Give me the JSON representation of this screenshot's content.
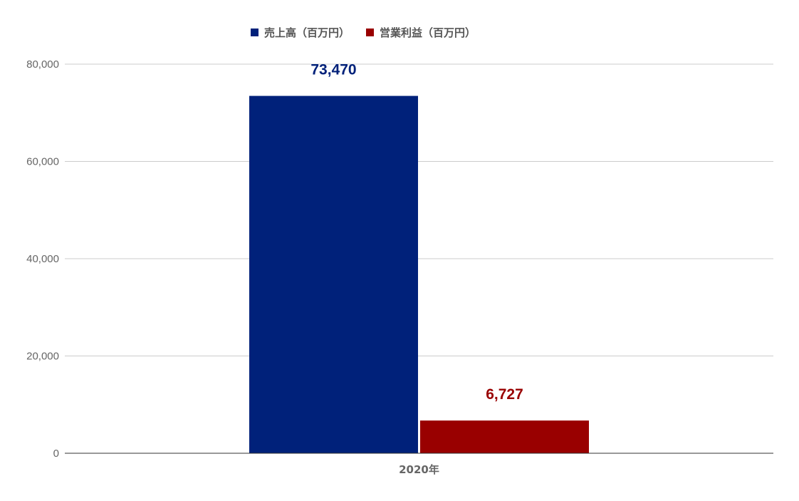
{
  "chart_data": {
    "type": "bar",
    "categories": [
      "2020年"
    ],
    "series": [
      {
        "name": "売上高（百万円）",
        "values": [
          73470
        ],
        "label": "73,470",
        "color": "#00217a"
      },
      {
        "name": "営業利益（百万円）",
        "values": [
          6727
        ],
        "label": "6,727",
        "color": "#990000"
      }
    ],
    "ylim": [
      0,
      80000
    ],
    "yticks": [
      0,
      20000,
      40000,
      60000,
      80000
    ],
    "ytick_labels": [
      "0",
      "20,000",
      "40,000",
      "60,000",
      "80,000"
    ],
    "grid": true,
    "legend_position": "top"
  }
}
